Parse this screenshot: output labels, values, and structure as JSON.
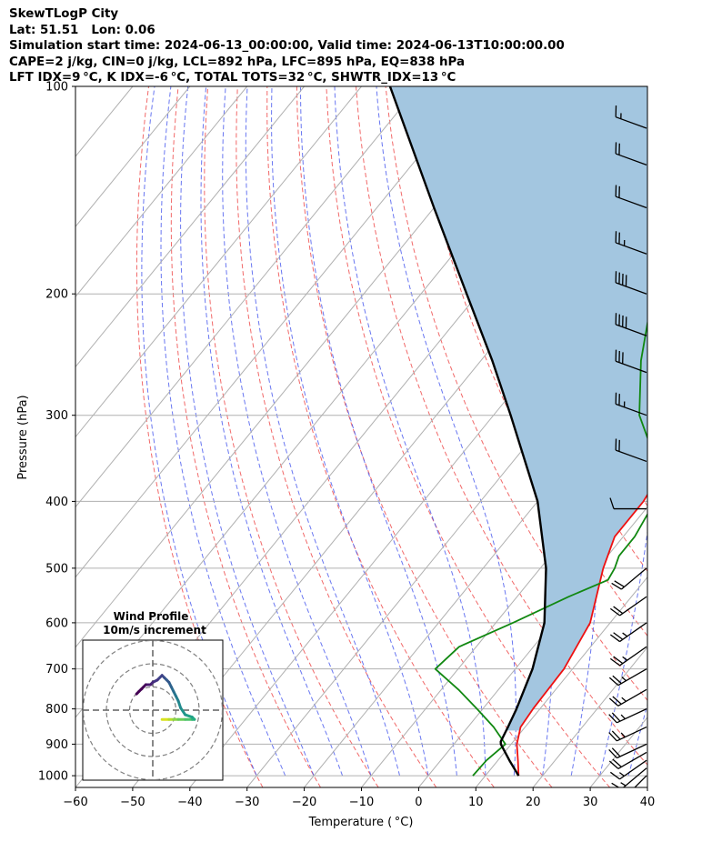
{
  "header": {
    "line1": "SkewTLogP City",
    "line2": "Lat: 51.51   Lon: 0.06",
    "line3": "Simulation start time: 2024-06-13_00:00:00, Valid time: 2024-06-13T10:00:00.00",
    "line4": "CAPE=2 j/kg, CIN=0 j/kg, LCL=892 hPa, LFC=895 hPa, EQ=838 hPa",
    "line5": "LFT IDX=9 °C, K IDX=-6 °C, TOTAL TOTS=32 °C, SHWTR_IDX=13 °C"
  },
  "chart_data": {
    "type": "line",
    "title": "SkewTLogP City",
    "xlabel": "Temperature ( °C)",
    "ylabel": "Pressure (hPa)",
    "xlim": [
      -60,
      40
    ],
    "ylim": [
      1040,
      100
    ],
    "y_scale": "log",
    "x_ticks": [
      "−60",
      "−50",
      "−40",
      "−30",
      "−20",
      "−10",
      "0",
      "10",
      "20",
      "30",
      "40"
    ],
    "y_ticks": [
      "100",
      "200",
      "300",
      "400",
      "500",
      "600",
      "700",
      "800",
      "900",
      "1000"
    ],
    "grid": true,
    "series": [
      {
        "name": "Temperature",
        "color": "#ee1111",
        "p": [
          1000,
          950,
          900,
          850,
          800,
          700,
          600,
          500,
          450,
          400,
          350,
          300,
          250,
          200,
          190,
          180,
          170,
          160,
          150,
          140,
          130,
          120,
          110,
          100
        ],
        "values": [
          15.8,
          13.5,
          11,
          9.2,
          8.8,
          8.5,
          6.5,
          1,
          -1.5,
          -1.5,
          -3,
          -8,
          -13,
          -20.5,
          -19.5,
          -16,
          -11,
          -5,
          -1,
          2,
          5,
          7,
          9,
          10.5
        ]
      },
      {
        "name": "Dewpoint",
        "color": "#118811",
        "p": [
          1000,
          950,
          900,
          850,
          800,
          750,
          700,
          650,
          600,
          550,
          520,
          500,
          480,
          450,
          400,
          350,
          300,
          250,
          200,
          180,
          170,
          160,
          150,
          140,
          130,
          120,
          110,
          100
        ],
        "values": [
          7.8,
          8,
          9,
          4.5,
          -1,
          -7,
          -14,
          -13,
          -7,
          -1,
          3.5,
          3,
          2,
          2,
          0.5,
          -5,
          -14.5,
          -22,
          -29.5,
          -28,
          -25,
          -26,
          -34,
          -37,
          -30,
          -25,
          -20,
          -16
        ]
      },
      {
        "name": "Parcel profile",
        "color": "#000000",
        "p": [
          1000,
          950,
          900,
          892,
          850,
          800,
          700,
          600,
          500,
          400,
          300,
          250,
          200,
          150,
          100
        ],
        "values": [
          15.8,
          12,
          8.2,
          7.8,
          7,
          5.9,
          3,
          -1.5,
          -9,
          -20,
          -37,
          -48,
          -62,
          -80,
          -105
        ]
      }
    ],
    "cape_fill_color": "#a3c6e0",
    "wind_barbs": [
      {
        "p": 1000,
        "speed_kt": 10,
        "dir_deg": 225
      },
      {
        "p": 975,
        "speed_kt": 15,
        "dir_deg": 230
      },
      {
        "p": 950,
        "speed_kt": 15,
        "dir_deg": 235
      },
      {
        "p": 925,
        "speed_kt": 20,
        "dir_deg": 240
      },
      {
        "p": 900,
        "speed_kt": 20,
        "dir_deg": 245
      },
      {
        "p": 850,
        "speed_kt": 25,
        "dir_deg": 245
      },
      {
        "p": 800,
        "speed_kt": 25,
        "dir_deg": 245
      },
      {
        "p": 750,
        "speed_kt": 25,
        "dir_deg": 240
      },
      {
        "p": 700,
        "speed_kt": 25,
        "dir_deg": 240
      },
      {
        "p": 650,
        "speed_kt": 25,
        "dir_deg": 235
      },
      {
        "p": 600,
        "speed_kt": 25,
        "dir_deg": 235
      },
      {
        "p": 550,
        "speed_kt": 20,
        "dir_deg": 235
      },
      {
        "p": 500,
        "speed_kt": 20,
        "dir_deg": 230
      },
      {
        "p": 410,
        "speed_kt": 10,
        "dir_deg": 270
      },
      {
        "p": 350,
        "speed_kt": 20,
        "dir_deg": 290
      },
      {
        "p": 300,
        "speed_kt": 25,
        "dir_deg": 290
      },
      {
        "p": 260,
        "speed_kt": 30,
        "dir_deg": 290
      },
      {
        "p": 230,
        "speed_kt": 40,
        "dir_deg": 290
      },
      {
        "p": 200,
        "speed_kt": 40,
        "dir_deg": 290
      },
      {
        "p": 175,
        "speed_kt": 25,
        "dir_deg": 290
      },
      {
        "p": 150,
        "speed_kt": 20,
        "dir_deg": 290
      },
      {
        "p": 130,
        "speed_kt": 20,
        "dir_deg": 290
      },
      {
        "p": 115,
        "speed_kt": 15,
        "dir_deg": 290
      }
    ],
    "hodograph": {
      "title_line1": "Wind Profile",
      "title_line2": "10m/s increment",
      "ring_increment_ms": 10,
      "u": [
        4,
        7,
        9,
        11,
        14,
        17,
        18,
        17,
        14,
        12,
        11,
        10,
        9,
        8,
        7,
        6,
        5,
        4,
        2,
        0,
        -1,
        -3,
        -4,
        -5,
        -6,
        -7
      ],
      "v": [
        -4,
        -4,
        -4,
        -4,
        -4,
        -4,
        -4,
        -3,
        -2,
        1,
        4,
        6,
        8,
        10,
        12,
        13,
        14,
        15,
        13,
        12,
        11,
        11,
        10,
        9,
        8,
        7
      ]
    }
  }
}
